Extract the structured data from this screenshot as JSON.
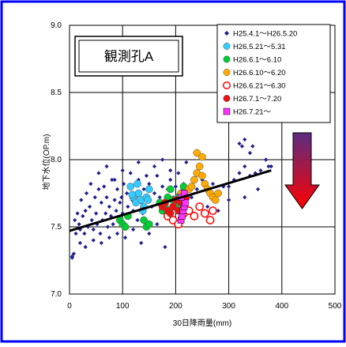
{
  "chart_data": {
    "type": "scatter",
    "title": "観測孔A",
    "xlabel": "30日降雨量(mm)",
    "ylabel": "地下水位(OP.m)",
    "xlim": [
      0,
      500
    ],
    "ylim": [
      7.0,
      9.0
    ],
    "x_ticks": [
      "0",
      "100",
      "200",
      "300",
      "400",
      "500"
    ],
    "y_ticks": [
      "7.0",
      "7.5",
      "8.0",
      "8.5",
      "9.0"
    ],
    "grid": true,
    "legend_position": "top-right",
    "annotation": "downward-arrow",
    "trendline": {
      "x": [
        0,
        380
      ],
      "y": [
        7.47,
        7.92
      ]
    },
    "colors": {
      "frame": "#0000ff",
      "trend": "#000000",
      "arrow_top": "#5a2d82",
      "arrow_bottom": "#ff0000"
    },
    "series": [
      {
        "name": "H25.4.1～H26.5.20",
        "marker": "diamond",
        "color": "#1f1f8f",
        "x": [
          5,
          10,
          12,
          15,
          18,
          20,
          22,
          25,
          28,
          30,
          32,
          35,
          38,
          40,
          42,
          45,
          48,
          50,
          52,
          55,
          58,
          60,
          62,
          65,
          68,
          70,
          72,
          75,
          78,
          80,
          82,
          85,
          88,
          90,
          92,
          95,
          98,
          100,
          102,
          105,
          108,
          110,
          112,
          115,
          118,
          120,
          125,
          128,
          130,
          135,
          138,
          140,
          145,
          150,
          155,
          160,
          165,
          170,
          175,
          180,
          185,
          190,
          195,
          200,
          205,
          210,
          215,
          220,
          230,
          240,
          250,
          260,
          270,
          280,
          290,
          300,
          310,
          320,
          330,
          340,
          350,
          360,
          370,
          380,
          320,
          325,
          330,
          340,
          370,
          375,
          345,
          5,
          8,
          20,
          30,
          45,
          60,
          75,
          90,
          105,
          120,
          135,
          150,
          165,
          180,
          195,
          215,
          235,
          260,
          280,
          300,
          330,
          355,
          55,
          70,
          85,
          100,
          115,
          130,
          145,
          160,
          175,
          190
        ],
        "y": [
          7.28,
          7.55,
          7.45,
          7.6,
          7.52,
          7.48,
          7.7,
          7.58,
          7.45,
          7.62,
          7.75,
          7.5,
          7.65,
          7.82,
          7.55,
          7.48,
          7.72,
          7.6,
          7.52,
          7.78,
          7.45,
          7.68,
          7.55,
          7.8,
          7.6,
          7.72,
          7.5,
          7.65,
          7.58,
          7.85,
          7.52,
          7.7,
          7.62,
          7.78,
          7.55,
          7.68,
          7.72,
          7.6,
          7.82,
          7.52,
          7.75,
          7.65,
          7.58,
          7.8,
          7.7,
          7.62,
          7.72,
          7.55,
          7.85,
          7.68,
          7.6,
          7.78,
          7.7,
          7.82,
          7.65,
          7.75,
          7.88,
          7.72,
          7.8,
          7.68,
          7.78,
          7.85,
          7.72,
          7.8,
          7.9,
          7.75,
          7.82,
          7.98,
          7.72,
          7.78,
          7.85,
          7.78,
          7.82,
          7.75,
          7.8,
          7.8,
          7.85,
          7.9,
          7.95,
          7.88,
          7.9,
          7.92,
          8.0,
          7.95,
          8.12,
          8.1,
          8.15,
          8.05,
          8.0,
          7.95,
          8.1,
          7.27,
          7.3,
          7.38,
          7.35,
          7.4,
          7.38,
          7.42,
          7.45,
          7.42,
          7.48,
          7.38,
          7.45,
          7.52,
          7.35,
          7.55,
          7.62,
          7.6,
          7.65,
          7.62,
          7.7,
          7.72,
          7.78,
          7.9,
          7.95,
          7.85,
          7.92,
          7.9,
          7.98,
          7.88,
          7.95,
          8.0,
          7.92
        ]
      },
      {
        "name": "H26.5.21～5.31",
        "marker": "circle",
        "color": "#33ccff",
        "x": [
          115,
          120,
          125,
          130,
          135,
          140,
          145,
          150,
          128,
          138,
          148,
          118
        ],
        "y": [
          7.8,
          7.72,
          7.68,
          7.75,
          7.7,
          7.65,
          7.72,
          7.78,
          7.82,
          7.62,
          7.7,
          7.74
        ]
      },
      {
        "name": "H26.6.1～6.10",
        "marker": "circle",
        "color": "#00cc33",
        "x": [
          95,
          100,
          105,
          110,
          140,
          145,
          150,
          170,
          175,
          180,
          185,
          190,
          195,
          200,
          205,
          210,
          215
        ],
        "y": [
          7.55,
          7.52,
          7.5,
          7.58,
          7.55,
          7.5,
          7.52,
          7.68,
          7.62,
          7.65,
          7.72,
          7.78,
          7.7,
          7.65,
          7.72,
          7.75,
          7.8
        ]
      },
      {
        "name": "H26.6.10～6.20",
        "marker": "circle",
        "color": "#ffaa00",
        "x": [
          210,
          220,
          225,
          230,
          235,
          240,
          245,
          250,
          255,
          260,
          265,
          270,
          275,
          280,
          240,
          250
        ],
        "y": [
          7.75,
          7.72,
          7.78,
          7.8,
          7.85,
          7.9,
          7.95,
          7.88,
          7.82,
          7.78,
          7.75,
          7.72,
          7.7,
          7.75,
          8.05,
          8.02
        ]
      },
      {
        "name": "H26.6.21～6.30",
        "marker": "circle-open",
        "color": "#ff0000",
        "x": [
          185,
          195,
          205,
          215,
          225,
          235,
          245,
          255,
          265,
          270
        ],
        "y": [
          7.58,
          7.55,
          7.52,
          7.6,
          7.62,
          7.58,
          7.65,
          7.6,
          7.55,
          7.62
        ]
      },
      {
        "name": "H26.7.1～7.20",
        "marker": "circle",
        "color": "#ee1111",
        "x": [
          175,
          180,
          185,
          190,
          195,
          200,
          205,
          210,
          215,
          220
        ],
        "y": [
          7.65,
          7.68,
          7.62,
          7.6,
          7.65,
          7.7,
          7.62,
          7.68,
          7.65,
          7.72
        ]
      },
      {
        "name": "H26.7.21～",
        "marker": "square",
        "color": "#ff33ff",
        "x": [
          210,
          212,
          214,
          216,
          218,
          210,
          216
        ],
        "y": [
          7.55,
          7.58,
          7.62,
          7.65,
          7.68,
          7.72,
          7.75
        ]
      }
    ]
  }
}
